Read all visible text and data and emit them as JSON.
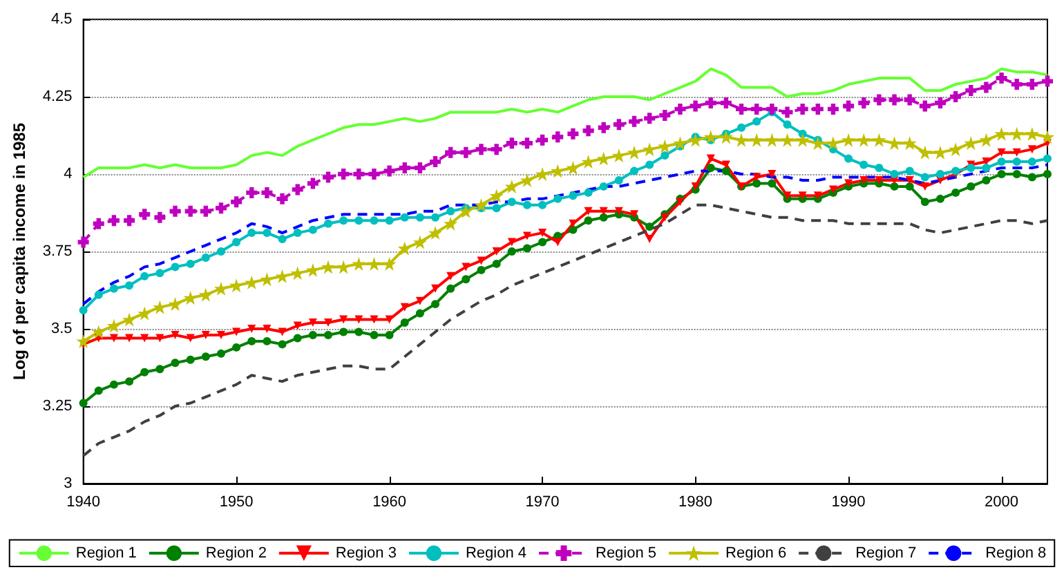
{
  "chart_data": {
    "type": "line",
    "ylabel": "Log of per capita income in 1985",
    "x": [
      1940,
      1941,
      1942,
      1943,
      1944,
      1945,
      1946,
      1947,
      1948,
      1949,
      1950,
      1951,
      1952,
      1953,
      1954,
      1955,
      1956,
      1957,
      1958,
      1959,
      1960,
      1961,
      1962,
      1963,
      1964,
      1965,
      1966,
      1967,
      1968,
      1969,
      1970,
      1971,
      1972,
      1973,
      1974,
      1975,
      1976,
      1977,
      1978,
      1979,
      1980,
      1981,
      1982,
      1983,
      1984,
      1985,
      1986,
      1987,
      1988,
      1989,
      1990,
      1991,
      1992,
      1993,
      1994,
      1995,
      1996,
      1997,
      1998,
      1999,
      2000,
      2001,
      2002,
      2003
    ],
    "xlim": [
      1940,
      2003
    ],
    "xticks": [
      1940,
      1950,
      1960,
      1970,
      1980,
      1990,
      2000
    ],
    "ylim": [
      3,
      4.5
    ],
    "yticks": [
      3,
      3.25,
      3.5,
      3.75,
      4,
      4.25,
      4.5
    ],
    "grid": "y",
    "legend": "bottom",
    "series": [
      {
        "name": "Region 1",
        "color": "#66ff33",
        "marker": "none",
        "line_style": "solid",
        "values": [
          3.99,
          4.02,
          4.02,
          4.02,
          4.03,
          4.02,
          4.03,
          4.02,
          4.02,
          4.02,
          4.03,
          4.06,
          4.07,
          4.06,
          4.09,
          4.11,
          4.13,
          4.15,
          4.16,
          4.16,
          4.17,
          4.18,
          4.17,
          4.18,
          4.2,
          4.2,
          4.2,
          4.2,
          4.21,
          4.2,
          4.21,
          4.2,
          4.22,
          4.24,
          4.25,
          4.25,
          4.25,
          4.24,
          4.26,
          4.28,
          4.3,
          4.34,
          4.32,
          4.28,
          4.28,
          4.28,
          4.25,
          4.26,
          4.26,
          4.27,
          4.29,
          4.3,
          4.31,
          4.31,
          4.31,
          4.27,
          4.27,
          4.29,
          4.3,
          4.31,
          4.34,
          4.33,
          4.33,
          4.32
        ]
      },
      {
        "name": "Region 2",
        "color": "#008000",
        "marker": "circle",
        "line_style": "solid",
        "values": [
          3.26,
          3.3,
          3.32,
          3.33,
          3.36,
          3.37,
          3.39,
          3.4,
          3.41,
          3.42,
          3.44,
          3.46,
          3.46,
          3.45,
          3.47,
          3.48,
          3.48,
          3.49,
          3.49,
          3.48,
          3.48,
          3.52,
          3.55,
          3.58,
          3.63,
          3.66,
          3.69,
          3.71,
          3.75,
          3.76,
          3.78,
          3.8,
          3.82,
          3.85,
          3.86,
          3.87,
          3.86,
          3.83,
          3.87,
          3.92,
          3.95,
          4.02,
          4.01,
          3.96,
          3.97,
          3.97,
          3.92,
          3.92,
          3.92,
          3.94,
          3.96,
          3.97,
          3.97,
          3.96,
          3.96,
          3.91,
          3.92,
          3.94,
          3.96,
          3.98,
          4.0,
          4.0,
          3.99,
          4.0
        ]
      },
      {
        "name": "Region 3",
        "color": "#ff0000",
        "marker": "triangle",
        "line_style": "solid",
        "values": [
          3.45,
          3.47,
          3.47,
          3.47,
          3.47,
          3.47,
          3.48,
          3.47,
          3.48,
          3.48,
          3.49,
          3.5,
          3.5,
          3.49,
          3.51,
          3.52,
          3.52,
          3.53,
          3.53,
          3.53,
          3.53,
          3.57,
          3.59,
          3.63,
          3.67,
          3.7,
          3.72,
          3.75,
          3.78,
          3.8,
          3.81,
          3.78,
          3.84,
          3.88,
          3.88,
          3.88,
          3.87,
          3.79,
          3.86,
          3.91,
          3.96,
          4.05,
          4.03,
          3.96,
          3.99,
          4.0,
          3.93,
          3.93,
          3.93,
          3.95,
          3.97,
          3.98,
          3.98,
          3.98,
          3.98,
          3.96,
          3.98,
          4.0,
          4.03,
          4.04,
          4.07,
          4.07,
          4.08,
          4.1
        ]
      },
      {
        "name": "Region 4",
        "color": "#00bfbf",
        "marker": "circle",
        "line_style": "solid",
        "values": [
          3.56,
          3.61,
          3.63,
          3.64,
          3.67,
          3.68,
          3.7,
          3.71,
          3.73,
          3.75,
          3.78,
          3.81,
          3.81,
          3.79,
          3.81,
          3.82,
          3.84,
          3.85,
          3.85,
          3.85,
          3.85,
          3.86,
          3.86,
          3.86,
          3.88,
          3.89,
          3.89,
          3.89,
          3.91,
          3.9,
          3.9,
          3.92,
          3.93,
          3.94,
          3.96,
          3.98,
          4.01,
          4.03,
          4.06,
          4.09,
          4.12,
          4.11,
          4.13,
          4.15,
          4.17,
          4.2,
          4.16,
          4.13,
          4.11,
          4.08,
          4.05,
          4.03,
          4.02,
          4.0,
          4.01,
          3.99,
          4.0,
          4.01,
          4.02,
          4.02,
          4.04,
          4.04,
          4.04,
          4.05
        ]
      },
      {
        "name": "Region 5",
        "color": "#bf00bf",
        "marker": "cross",
        "line_style": "dashed",
        "values": [
          3.78,
          3.84,
          3.85,
          3.85,
          3.87,
          3.86,
          3.88,
          3.88,
          3.88,
          3.89,
          3.91,
          3.94,
          3.94,
          3.92,
          3.95,
          3.97,
          3.99,
          4.0,
          4.0,
          4.0,
          4.01,
          4.02,
          4.02,
          4.04,
          4.07,
          4.07,
          4.08,
          4.08,
          4.1,
          4.1,
          4.11,
          4.12,
          4.13,
          4.14,
          4.15,
          4.16,
          4.17,
          4.18,
          4.19,
          4.21,
          4.22,
          4.23,
          4.23,
          4.21,
          4.21,
          4.21,
          4.2,
          4.21,
          4.21,
          4.21,
          4.22,
          4.23,
          4.24,
          4.24,
          4.24,
          4.22,
          4.23,
          4.25,
          4.27,
          4.28,
          4.31,
          4.29,
          4.29,
          4.3
        ]
      },
      {
        "name": "Region 6",
        "color": "#bfbf00",
        "marker": "star",
        "line_style": "solid",
        "values": [
          3.46,
          3.49,
          3.51,
          3.53,
          3.55,
          3.57,
          3.58,
          3.6,
          3.61,
          3.63,
          3.64,
          3.65,
          3.66,
          3.67,
          3.68,
          3.69,
          3.7,
          3.7,
          3.71,
          3.71,
          3.71,
          3.76,
          3.78,
          3.81,
          3.84,
          3.88,
          3.9,
          3.93,
          3.96,
          3.98,
          4.0,
          4.01,
          4.02,
          4.04,
          4.05,
          4.06,
          4.07,
          4.08,
          4.09,
          4.1,
          4.11,
          4.12,
          4.12,
          4.11,
          4.11,
          4.11,
          4.11,
          4.11,
          4.1,
          4.1,
          4.11,
          4.11,
          4.11,
          4.1,
          4.1,
          4.07,
          4.07,
          4.08,
          4.1,
          4.11,
          4.13,
          4.13,
          4.13,
          4.12
        ]
      },
      {
        "name": "Region 7",
        "color": "#404040",
        "marker": "none",
        "line_style": "dashed",
        "values": [
          3.09,
          3.13,
          3.15,
          3.17,
          3.2,
          3.22,
          3.25,
          3.26,
          3.28,
          3.3,
          3.32,
          3.35,
          3.34,
          3.33,
          3.35,
          3.36,
          3.37,
          3.38,
          3.38,
          3.37,
          3.37,
          3.41,
          3.45,
          3.49,
          3.53,
          3.56,
          3.59,
          3.61,
          3.64,
          3.66,
          3.68,
          3.7,
          3.72,
          3.74,
          3.76,
          3.78,
          3.8,
          3.82,
          3.84,
          3.87,
          3.9,
          3.9,
          3.89,
          3.88,
          3.87,
          3.86,
          3.86,
          3.85,
          3.85,
          3.85,
          3.84,
          3.84,
          3.84,
          3.84,
          3.84,
          3.82,
          3.81,
          3.82,
          3.83,
          3.84,
          3.85,
          3.85,
          3.84,
          3.85
        ]
      },
      {
        "name": "Region 8",
        "color": "#0000ff",
        "marker": "none",
        "line_style": "dashed",
        "values": [
          3.58,
          3.62,
          3.65,
          3.67,
          3.7,
          3.71,
          3.73,
          3.75,
          3.77,
          3.79,
          3.81,
          3.84,
          3.83,
          3.81,
          3.83,
          3.85,
          3.86,
          3.87,
          3.87,
          3.87,
          3.87,
          3.87,
          3.88,
          3.88,
          3.9,
          3.9,
          3.9,
          3.91,
          3.91,
          3.92,
          3.92,
          3.93,
          3.94,
          3.95,
          3.96,
          3.96,
          3.97,
          3.98,
          3.99,
          4.0,
          4.01,
          4.01,
          4.01,
          4.0,
          4.0,
          3.99,
          3.99,
          3.98,
          3.98,
          3.99,
          3.99,
          3.99,
          3.99,
          3.99,
          3.98,
          3.97,
          3.98,
          3.99,
          4.0,
          4.01,
          4.02,
          4.02,
          4.02,
          4.03
        ]
      }
    ]
  }
}
